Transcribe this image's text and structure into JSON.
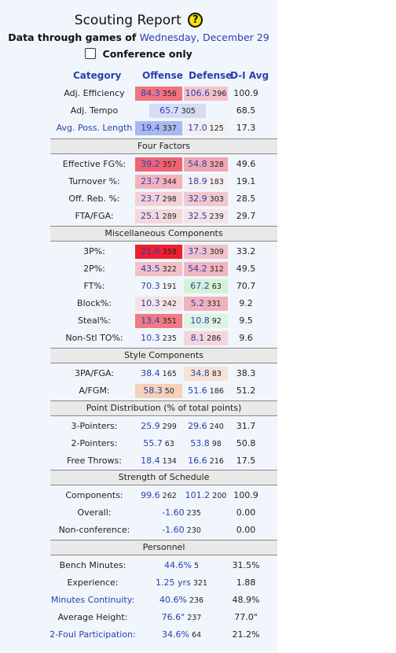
{
  "header": {
    "title": "Scouting Report",
    "help_glyph": "?",
    "subtitle_prefix": "Data through games of",
    "subtitle_date": "Wednesday, December 29",
    "conference_label": "Conference only",
    "conference_checked": false
  },
  "columns": {
    "category": "Category",
    "offense": "Offense",
    "defense": "Defense",
    "avg": "D-I Avg"
  },
  "top_rows": [
    {
      "label": "Adj. Efficiency",
      "label_link": false,
      "off": "84.3",
      "off_rank": "356",
      "off_bg": "#f0737f",
      "def": "106.6",
      "def_rank": "296",
      "def_bg": "#f3c3ca",
      "avg": "100.9"
    },
    {
      "label": "Adj. Tempo",
      "label_link": false,
      "tempo": "65.7",
      "tempo_rank": "305",
      "tempo_bg": "#d6dcf4",
      "avg": "68.5"
    },
    {
      "label": "Avg. Poss. Length",
      "label_link": true,
      "off": "19.4",
      "off_rank": "337",
      "off_bg": "#a9b8ef",
      "def": "17.0",
      "def_rank": "125",
      "def_bg": "#f2eff2",
      "avg": "17.3"
    }
  ],
  "sections": [
    {
      "title": "Four Factors",
      "rows": [
        {
          "label": "Effective FG%:",
          "off": "39.2",
          "off_rank": "357",
          "off_bg": "#f06472",
          "def": "54.8",
          "def_rank": "328",
          "def_bg": "#f1a5b2",
          "avg": "49.6"
        },
        {
          "label": "Turnover %:",
          "off": "23.7",
          "off_rank": "344",
          "off_bg": "#f2b3bd",
          "def": "18.9",
          "def_rank": "183",
          "def_bg": "#f6eef0",
          "avg": "19.1"
        },
        {
          "label": "Off. Reb. %:",
          "off": "23.7",
          "off_rank": "298",
          "off_bg": "#f4d1d5",
          "def": "32.9",
          "def_rank": "303",
          "def_bg": "#f2c8ce",
          "avg": "28.5"
        },
        {
          "label": "FTA/FGA:",
          "off": "25.1",
          "off_rank": "289",
          "off_bg": "#f4d8dc",
          "def": "32.5",
          "def_rank": "239",
          "def_bg": "#f4e3e6",
          "avg": "29.7"
        }
      ]
    },
    {
      "title": "Miscellaneous Components",
      "rows": [
        {
          "label": "3P%:",
          "off": "21.6",
          "off_rank": "358",
          "off_bg": "#ee1f2f",
          "def": "37.3",
          "def_rank": "309",
          "def_bg": "#f2c2ca",
          "avg": "33.2"
        },
        {
          "label": "2P%:",
          "off": "43.5",
          "off_rank": "322",
          "off_bg": "#f3c0c7",
          "def": "54.2",
          "def_rank": "312",
          "def_bg": "#f2b6c0",
          "avg": "49.5"
        },
        {
          "label": "FT%:",
          "off": "70.3",
          "off_rank": "191",
          "off_bg": "",
          "def": "67.2",
          "def_rank": "63",
          "def_bg": "#d4f2d8",
          "avg": "70.7"
        },
        {
          "label": "Block%:",
          "off": "10.3",
          "off_rank": "242",
          "off_bg": "#f5e3e6",
          "def": "5.2",
          "def_rank": "331",
          "def_bg": "#f1b2bb",
          "avg": "9.2"
        },
        {
          "label": "Steal%:",
          "off": "13.4",
          "off_rank": "351",
          "off_bg": "#f07a86",
          "def": "10.8",
          "def_rank": "92",
          "def_bg": "#ddf4e0",
          "avg": "9.5"
        },
        {
          "label": "Non-Stl TO%:",
          "off": "10.3",
          "off_rank": "235",
          "off_bg": "",
          "def": "8.1",
          "def_rank": "286",
          "def_bg": "#f4d6da",
          "avg": "9.6"
        }
      ]
    },
    {
      "title": "Style Components",
      "rows": [
        {
          "label": "3PA/FGA:",
          "off": "38.4",
          "off_rank": "165",
          "off_bg": "",
          "def": "34.8",
          "def_rank": "83",
          "def_bg": "#f6e3d6",
          "avg": "38.3"
        },
        {
          "label": "A/FGM:",
          "off": "58.3",
          "off_rank": "50",
          "off_bg": "#f6d2b8",
          "def": "51.6",
          "def_rank": "186",
          "def_bg": "",
          "avg": "51.2"
        }
      ]
    },
    {
      "title": "Point Distribution (% of total points)",
      "rows": [
        {
          "label": "3-Pointers:",
          "off": "25.9",
          "off_rank": "299",
          "off_bg": "",
          "def": "29.6",
          "def_rank": "240",
          "def_bg": "",
          "avg": "31.7"
        },
        {
          "label": "2-Pointers:",
          "off": "55.7",
          "off_rank": "63",
          "off_bg": "",
          "def": "53.8",
          "def_rank": "98",
          "def_bg": "",
          "avg": "50.8"
        },
        {
          "label": "Free Throws:",
          "off": "18.4",
          "off_rank": "134",
          "off_bg": "",
          "def": "16.6",
          "def_rank": "216",
          "def_bg": "",
          "avg": "17.5"
        }
      ]
    },
    {
      "title": "Strength of Schedule",
      "rows": [
        {
          "label": "Components:",
          "off": "99.6",
          "off_rank": "262",
          "off_bg": "",
          "def": "101.2",
          "def_rank": "200",
          "def_bg": "",
          "avg": "100.9"
        },
        {
          "label": "Overall:",
          "mid": "-1.60",
          "mid_rank": "235",
          "avg": "0.00"
        },
        {
          "label": "Non-conference:",
          "mid": "-1.60",
          "mid_rank": "230",
          "avg": "0.00"
        }
      ]
    },
    {
      "title": "Personnel",
      "rows": [
        {
          "label": "Bench Minutes:",
          "mid": "44.6%",
          "mid_rank": "5",
          "avg": "31.5%"
        },
        {
          "label": "Experience:",
          "mid": "1.25 yrs",
          "mid_rank": "321",
          "avg": "1.88"
        },
        {
          "label": "Minutes Continuity:",
          "label_link": true,
          "mid": "40.6%",
          "mid_rank": "236",
          "avg": "48.9%"
        },
        {
          "label": "Average Height:",
          "mid": "76.6\"",
          "mid_rank": "237",
          "avg": "77.0\""
        },
        {
          "label": "2-Foul Participation:",
          "label_link": true,
          "mid": "34.6%",
          "mid_rank": "64",
          "avg": "21.2%"
        }
      ]
    }
  ]
}
